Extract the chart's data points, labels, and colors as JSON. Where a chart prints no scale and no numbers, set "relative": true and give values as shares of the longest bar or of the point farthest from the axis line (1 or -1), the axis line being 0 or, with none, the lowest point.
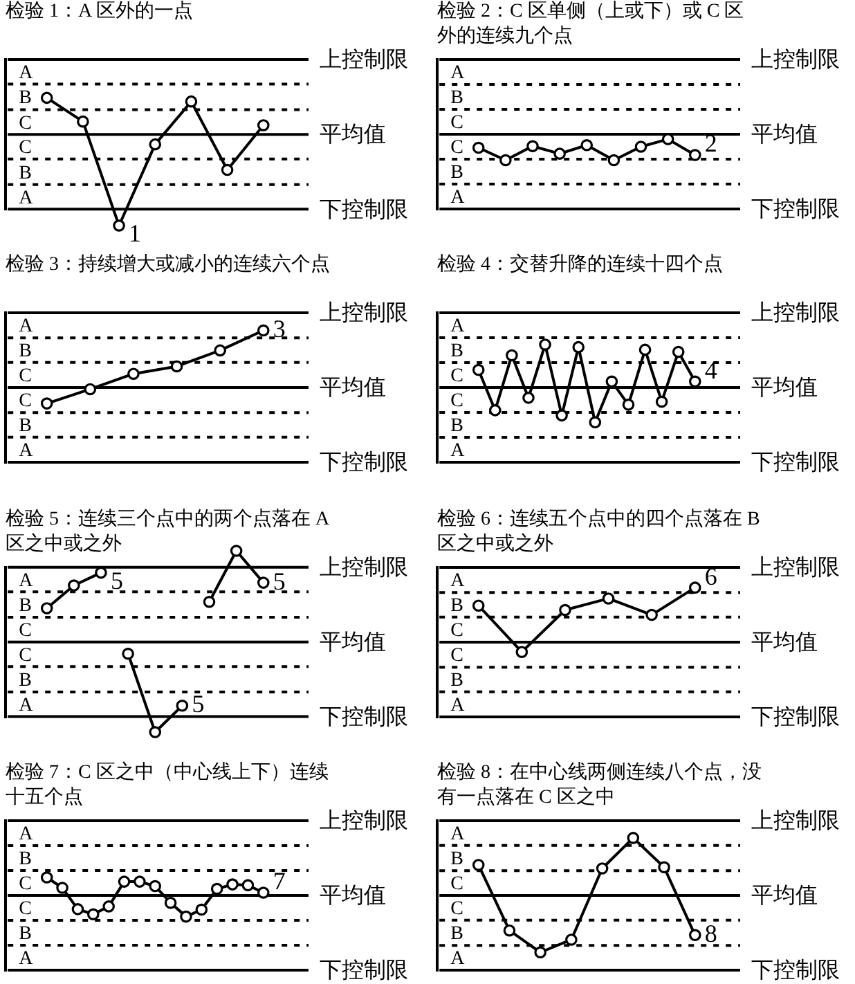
{
  "chart_data": [
    {
      "type": "line",
      "relative": true,
      "title": "检验 1：A 区外的一点",
      "categories": [
        null,
        null,
        null,
        null,
        null,
        null,
        null
      ],
      "values": [
        0.4,
        0.14,
        -1,
        -0.11,
        0.36,
        -0.39,
        0.1
      ],
      "color": "#000000",
      "marker": "circle",
      "ref_lines": [
        {
          "axis": "y",
          "value": 0.82,
          "label": "上控制限"
        },
        {
          "axis": "y",
          "value": 0.55,
          "line_style": "dashed"
        },
        {
          "axis": "y",
          "value": 0.27,
          "line_style": "dashed"
        },
        {
          "axis": "y",
          "value": 0,
          "label": "平均值"
        },
        {
          "axis": "y",
          "value": -0.27,
          "line_style": "dashed"
        },
        {
          "axis": "y",
          "value": -0.55,
          "line_style": "dashed"
        },
        {
          "axis": "y",
          "value": -0.82,
          "label": "下控制限"
        }
      ],
      "annotations": [
        "A",
        "B",
        "C",
        "C",
        "B",
        "A",
        "1"
      ]
    },
    {
      "type": "line",
      "relative": true,
      "title": "检验 2：C 区单侧（上或下）或 C 区外的连续九个点",
      "categories": [
        null,
        null,
        null,
        null,
        null,
        null,
        null,
        null,
        null
      ],
      "values": [
        -0.52,
        -1,
        -0.46,
        -0.75,
        -0.42,
        -1,
        -0.48,
        -0.19,
        -0.8
      ],
      "color": "#000000",
      "marker": "circle",
      "ref_lines": [
        {
          "axis": "y",
          "value": 2.88,
          "label": "上控制限"
        },
        {
          "axis": "y",
          "value": 1.92,
          "line_style": "dashed"
        },
        {
          "axis": "y",
          "value": 0.96,
          "line_style": "dashed"
        },
        {
          "axis": "y",
          "value": 0,
          "label": "平均值"
        },
        {
          "axis": "y",
          "value": -0.96,
          "line_style": "dashed"
        },
        {
          "axis": "y",
          "value": -1.92,
          "line_style": "dashed"
        },
        {
          "axis": "y",
          "value": -2.88,
          "label": "下控制限"
        }
      ],
      "annotations": [
        "A",
        "B",
        "C",
        "C",
        "B",
        "A",
        "2"
      ]
    },
    {
      "type": "line",
      "relative": true,
      "title": "检验 3：持续增大或减小的连续六个点",
      "categories": [
        null,
        null,
        null,
        null,
        null,
        null
      ],
      "values": [
        -0.28,
        -0.03,
        0.24,
        0.37,
        0.65,
        1
      ],
      "color": "#000000",
      "marker": "circle",
      "ref_lines": [
        {
          "axis": "y",
          "value": 1.31,
          "label": "上控制限"
        },
        {
          "axis": "y",
          "value": 0.87,
          "line_style": "dashed"
        },
        {
          "axis": "y",
          "value": 0.44,
          "line_style": "dashed"
        },
        {
          "axis": "y",
          "value": 0,
          "label": "平均值"
        },
        {
          "axis": "y",
          "value": -0.44,
          "line_style": "dashed"
        },
        {
          "axis": "y",
          "value": -0.87,
          "line_style": "dashed"
        },
        {
          "axis": "y",
          "value": -1.31,
          "label": "下控制限"
        }
      ],
      "annotations": [
        "A",
        "B",
        "C",
        "C",
        "B",
        "A",
        "3"
      ]
    },
    {
      "type": "line",
      "relative": true,
      "title": "检验 4：交替升降的连续十四个点",
      "categories": [
        null,
        null,
        null,
        null,
        null,
        null,
        null,
        null,
        null,
        null,
        null,
        null,
        null,
        null
      ],
      "values": [
        0.41,
        -0.53,
        0.75,
        -0.24,
        1,
        -0.65,
        0.94,
        -0.81,
        0.14,
        -0.4,
        0.88,
        -0.33,
        0.83,
        0.14
      ],
      "color": "#000000",
      "marker": "circle",
      "ref_lines": [
        {
          "axis": "y",
          "value": 1.74,
          "label": "上控制限"
        },
        {
          "axis": "y",
          "value": 1.16,
          "line_style": "dashed"
        },
        {
          "axis": "y",
          "value": 0.58,
          "line_style": "dashed"
        },
        {
          "axis": "y",
          "value": 0,
          "label": "平均值"
        },
        {
          "axis": "y",
          "value": -0.58,
          "line_style": "dashed"
        },
        {
          "axis": "y",
          "value": -1.16,
          "line_style": "dashed"
        },
        {
          "axis": "y",
          "value": -1.74,
          "label": "下控制限"
        }
      ],
      "annotations": [
        "A",
        "B",
        "C",
        "C",
        "B",
        "A",
        "4"
      ]
    },
    {
      "type": "line",
      "relative": true,
      "title": "检验 5：连续三个点中的两个点落在 A 区之中或之外",
      "categories": [
        null,
        null,
        null,
        null,
        null,
        null,
        null,
        null,
        null
      ],
      "series": [
        {
          "color": "#000000",
          "values": [
            0.37,
            0.62,
            0.76,
            null,
            null,
            null,
            null,
            null,
            null
          ]
        },
        {
          "color": "#000000",
          "values": [
            null,
            null,
            null,
            -0.13,
            -0.99,
            -0.7,
            null,
            null,
            null
          ]
        },
        {
          "color": "#000000",
          "values": [
            null,
            null,
            null,
            null,
            null,
            null,
            0.44,
            1,
            0.65
          ]
        }
      ],
      "marker": "circle",
      "ref_lines": [
        {
          "axis": "y",
          "value": 0.82,
          "label": "上控制限"
        },
        {
          "axis": "y",
          "value": 0.55,
          "line_style": "dashed"
        },
        {
          "axis": "y",
          "value": 0.27,
          "line_style": "dashed"
        },
        {
          "axis": "y",
          "value": 0,
          "label": "平均值"
        },
        {
          "axis": "y",
          "value": -0.27,
          "line_style": "dashed"
        },
        {
          "axis": "y",
          "value": -0.55,
          "line_style": "dashed"
        },
        {
          "axis": "y",
          "value": -0.82,
          "label": "下控制限"
        }
      ],
      "annotations": [
        "A",
        "B",
        "C",
        "C",
        "B",
        "A",
        "5",
        "5",
        "5"
      ]
    },
    {
      "type": "line",
      "relative": true,
      "title": "检验 6：连续五个点中的四个点落在 B 区之中或之外",
      "categories": [
        null,
        null,
        null,
        null,
        null,
        null
      ],
      "values": [
        0.67,
        -0.18,
        0.59,
        0.8,
        0.5,
        1
      ],
      "color": "#000000",
      "marker": "circle",
      "ref_lines": [
        {
          "axis": "y",
          "value": 1.37,
          "label": "上控制限"
        },
        {
          "axis": "y",
          "value": 0.91,
          "line_style": "dashed"
        },
        {
          "axis": "y",
          "value": 0.46,
          "line_style": "dashed"
        },
        {
          "axis": "y",
          "value": 0,
          "label": "平均值"
        },
        {
          "axis": "y",
          "value": -0.46,
          "line_style": "dashed"
        },
        {
          "axis": "y",
          "value": -0.91,
          "line_style": "dashed"
        },
        {
          "axis": "y",
          "value": -1.37,
          "label": "下控制限"
        }
      ],
      "annotations": [
        "A",
        "B",
        "C",
        "C",
        "B",
        "A",
        "6"
      ]
    },
    {
      "type": "line",
      "relative": true,
      "title": "检验 7：C 区之中（中心线上下）连续十五个点",
      "categories": [
        null,
        null,
        null,
        null,
        null,
        null,
        null,
        null,
        null,
        null,
        null,
        null,
        null,
        null,
        null
      ],
      "values": [
        0.85,
        0.36,
        -0.65,
        -0.89,
        -0.52,
        0.65,
        0.65,
        0.44,
        -0.35,
        -1,
        -0.67,
        0.31,
        0.52,
        0.48,
        0.13
      ],
      "color": "#000000",
      "marker": "circle",
      "ref_lines": [
        {
          "axis": "y",
          "value": 3.53,
          "label": "上控制限"
        },
        {
          "axis": "y",
          "value": 2.35,
          "line_style": "dashed"
        },
        {
          "axis": "y",
          "value": 1.18,
          "line_style": "dashed"
        },
        {
          "axis": "y",
          "value": 0,
          "label": "平均值"
        },
        {
          "axis": "y",
          "value": -1.18,
          "line_style": "dashed"
        },
        {
          "axis": "y",
          "value": -2.35,
          "line_style": "dashed"
        },
        {
          "axis": "y",
          "value": -3.53,
          "label": "下控制限"
        }
      ],
      "annotations": [
        "A",
        "B",
        "C",
        "C",
        "B",
        "A",
        "7"
      ]
    },
    {
      "type": "line",
      "relative": true,
      "title": "检验 8：在中心线两侧连续八个点，没有一点落在 C 区之中",
      "categories": [
        null,
        null,
        null,
        null,
        null,
        null,
        null,
        null
      ],
      "values": [
        0.53,
        -0.61,
        -0.99,
        -0.77,
        0.47,
        1,
        0.49,
        -0.69
      ],
      "color": "#000000",
      "marker": "circle",
      "ref_lines": [
        {
          "axis": "y",
          "value": 1.3,
          "label": "上控制限"
        },
        {
          "axis": "y",
          "value": 0.87,
          "line_style": "dashed"
        },
        {
          "axis": "y",
          "value": 0.43,
          "line_style": "dashed"
        },
        {
          "axis": "y",
          "value": 0,
          "label": "平均值"
        },
        {
          "axis": "y",
          "value": -0.43,
          "line_style": "dashed"
        },
        {
          "axis": "y",
          "value": -0.87,
          "line_style": "dashed"
        },
        {
          "axis": "y",
          "value": -1.3,
          "label": "下控制限"
        }
      ],
      "annotations": [
        "A",
        "B",
        "C",
        "C",
        "B",
        "A",
        "8"
      ]
    }
  ]
}
